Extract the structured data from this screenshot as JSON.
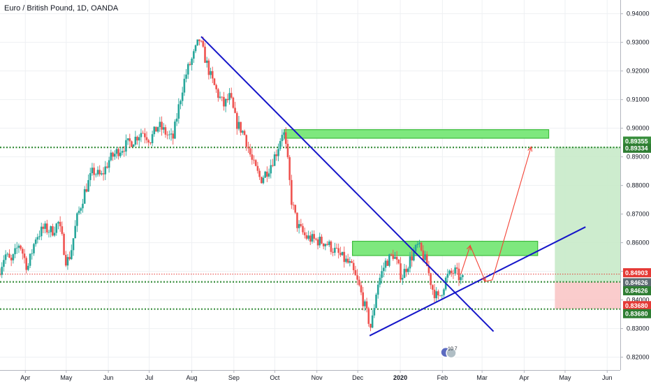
{
  "chart_data": {
    "type": "candlestick",
    "title": "Euro / British Pound, 1D, OANDA",
    "x_ticks": [
      {
        "label": "Apr",
        "t": 0.0
      },
      {
        "label": "May",
        "t": 1.0
      },
      {
        "label": "Jun",
        "t": 2.03
      },
      {
        "label": "Jul",
        "t": 3.03
      },
      {
        "label": "Aug",
        "t": 4.07
      },
      {
        "label": "Sep",
        "t": 5.1
      },
      {
        "label": "Oct",
        "t": 6.1
      },
      {
        "label": "Nov",
        "t": 7.13
      },
      {
        "label": "Dec",
        "t": 8.13
      },
      {
        "label": "2020",
        "t": 9.17,
        "bold": true
      },
      {
        "label": "Feb",
        "t": 10.2
      },
      {
        "label": "Mar",
        "t": 11.17
      },
      {
        "label": "Apr",
        "t": 12.2
      },
      {
        "label": "May",
        "t": 13.2
      },
      {
        "label": "Jun",
        "t": 14.23
      }
    ],
    "y_ticks": [
      "0.82000",
      "0.83000",
      "0.84000",
      "0.85000",
      "0.86000",
      "0.87000",
      "0.88000",
      "0.89000",
      "0.90000",
      "0.91000",
      "0.92000",
      "0.93000",
      "0.94000"
    ],
    "ylim": [
      0.8155,
      0.9448
    ],
    "xlim": [
      -0.62,
      14.55
    ],
    "price_path": [
      [
        -0.62,
        0.849
      ],
      [
        -0.45,
        0.856
      ],
      [
        -0.3,
        0.853
      ],
      [
        -0.1,
        0.86
      ],
      [
        0.1,
        0.851
      ],
      [
        0.3,
        0.862
      ],
      [
        0.5,
        0.865
      ],
      [
        0.7,
        0.864
      ],
      [
        0.85,
        0.867
      ],
      [
        0.95,
        0.861
      ],
      [
        1.05,
        0.853
      ],
      [
        1.15,
        0.856
      ],
      [
        1.3,
        0.868
      ],
      [
        1.5,
        0.878
      ],
      [
        1.7,
        0.885
      ],
      [
        1.9,
        0.883
      ],
      [
        2.1,
        0.889
      ],
      [
        2.3,
        0.892
      ],
      [
        2.5,
        0.894
      ],
      [
        2.7,
        0.896
      ],
      [
        2.9,
        0.899
      ],
      [
        3.1,
        0.896
      ],
      [
        3.3,
        0.901
      ],
      [
        3.5,
        0.898
      ],
      [
        3.65,
        0.896
      ],
      [
        3.75,
        0.904
      ],
      [
        3.9,
        0.915
      ],
      [
        4.0,
        0.92
      ],
      [
        4.15,
        0.925
      ],
      [
        4.3,
        0.931
      ],
      [
        4.45,
        0.924
      ],
      [
        4.6,
        0.917
      ],
      [
        4.75,
        0.912
      ],
      [
        4.9,
        0.908
      ],
      [
        5.05,
        0.911
      ],
      [
        5.2,
        0.902
      ],
      [
        5.4,
        0.898
      ],
      [
        5.6,
        0.888
      ],
      [
        5.8,
        0.882
      ],
      [
        6.0,
        0.886
      ],
      [
        6.2,
        0.892
      ],
      [
        6.35,
        0.9
      ],
      [
        6.45,
        0.89
      ],
      [
        6.55,
        0.875
      ],
      [
        6.7,
        0.866
      ],
      [
        6.9,
        0.862
      ],
      [
        7.1,
        0.861
      ],
      [
        7.4,
        0.86
      ],
      [
        7.7,
        0.856
      ],
      [
        8.0,
        0.852
      ],
      [
        8.2,
        0.845
      ],
      [
        8.4,
        0.835
      ],
      [
        8.5,
        0.83
      ],
      [
        8.65,
        0.845
      ],
      [
        8.85,
        0.853
      ],
      [
        9.05,
        0.856
      ],
      [
        9.25,
        0.848
      ],
      [
        9.45,
        0.854
      ],
      [
        9.65,
        0.859
      ],
      [
        9.85,
        0.853
      ],
      [
        10.0,
        0.844
      ],
      [
        10.15,
        0.84
      ],
      [
        10.35,
        0.848
      ],
      [
        10.55,
        0.85
      ],
      [
        10.7,
        0.847
      ]
    ],
    "horizontal_lines": [
      {
        "y": 0.8933,
        "color": "#388e3c",
        "style": "dotted"
      },
      {
        "y": 0.8463,
        "color": "#388e3c",
        "style": "dotted"
      },
      {
        "y": 0.8368,
        "color": "#388e3c",
        "style": "dotted"
      },
      {
        "y": 0.849,
        "color": "#e53935",
        "style": "dotted-thin"
      }
    ],
    "trendlines": [
      {
        "from": [
          4.3,
          0.932
        ],
        "to": [
          11.45,
          0.829
        ],
        "color": "#1515c9"
      },
      {
        "from": [
          8.42,
          0.8275
        ],
        "to": [
          13.7,
          0.8655
        ],
        "color": "#1515c9"
      }
    ],
    "zones": [
      {
        "x1": 6.33,
        "x2": 12.8,
        "y1": 0.8965,
        "y2": 0.8995,
        "color": "#7ee87e",
        "border": "#3dbb3d"
      },
      {
        "x1": 8.0,
        "x2": 12.53,
        "y1": 0.8555,
        "y2": 0.8605,
        "color": "#7ee87e",
        "border": "#3dbb3d"
      }
    ],
    "projection_path": [
      [
        10.65,
        0.849
      ],
      [
        10.88,
        0.859
      ],
      [
        11.25,
        0.8465
      ],
      [
        11.42,
        0.847
      ],
      [
        12.37,
        0.8935
      ]
    ],
    "position": {
      "x1": 12.95,
      "x2": 14.55,
      "entry": 0.8463,
      "target": 0.8935,
      "stop": 0.8368
    },
    "price_badges": [
      {
        "label": "0.89355",
        "y": 0.8955,
        "color": "#388e3c"
      },
      {
        "label": "0.89334",
        "y": 0.893,
        "color": "#2e7d32"
      },
      {
        "label": "0.84903",
        "y": 0.8495,
        "color": "#e53935"
      },
      {
        "label": "0.84626",
        "y": 0.846,
        "color": "#5d6b72"
      },
      {
        "label": "0.84626",
        "y": 0.8432,
        "color": "#2e7d32"
      },
      {
        "label": "0.83680",
        "y": 0.838,
        "color": "#e53935"
      },
      {
        "label": "0.83680",
        "y": 0.8352,
        "color": "#2e7d32"
      }
    ],
    "event_marker": {
      "t": 10.28,
      "y": 0.8217,
      "label": "10 7"
    }
  }
}
